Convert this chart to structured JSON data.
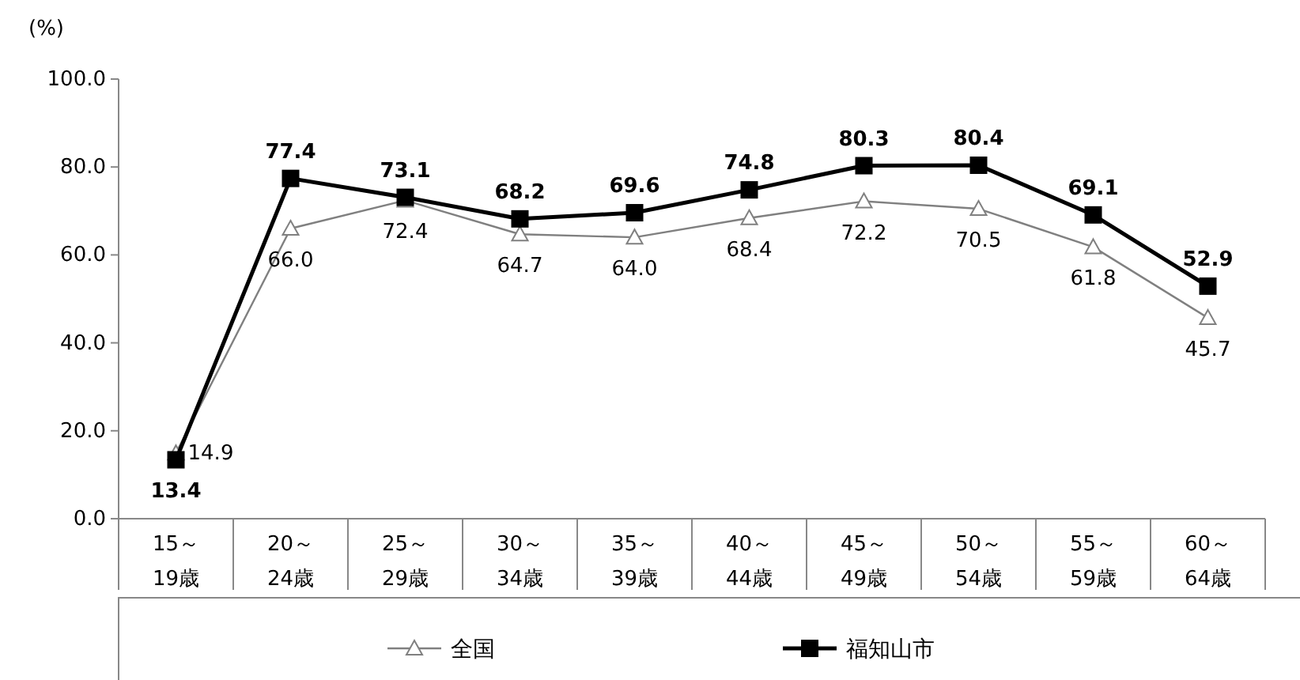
{
  "chart_data": {
    "type": "line",
    "ylabel": "(%)",
    "categories": [
      "15～19歳",
      "20～24歳",
      "25～29歳",
      "30～34歳",
      "35～39歳",
      "40～44歳",
      "45～49歳",
      "50～54歳",
      "55～59歳",
      "60～64歳"
    ],
    "series": [
      {
        "name": "全国",
        "color": "#808080",
        "marker": "triangle",
        "values": [
          14.9,
          66.0,
          72.4,
          64.7,
          64.0,
          68.4,
          72.2,
          70.5,
          61.8,
          45.7
        ],
        "value_labels": [
          "14.9",
          "66.0",
          "72.4",
          "64.7",
          "64.0",
          "68.4",
          "72.2",
          "70.5",
          "61.8",
          "45.7"
        ]
      },
      {
        "name": "福知山市",
        "color": "#000000",
        "marker": "square",
        "values": [
          13.4,
          77.4,
          73.1,
          68.2,
          69.6,
          74.8,
          80.3,
          80.4,
          69.1,
          52.9
        ],
        "value_labels": [
          "13.4",
          "77.4",
          "73.1",
          "68.2",
          "69.6",
          "74.8",
          "80.3",
          "80.4",
          "69.1",
          "52.9"
        ]
      }
    ],
    "ylim": [
      0,
      100
    ],
    "yticks": [
      {
        "value": 0,
        "label": "0.0"
      },
      {
        "value": 20,
        "label": "20.0"
      },
      {
        "value": 40,
        "label": "40.0"
      },
      {
        "value": 60,
        "label": "60.0"
      },
      {
        "value": 80,
        "label": "80.0"
      },
      {
        "value": 100,
        "label": "100.0"
      }
    ],
    "legend": "bottom",
    "grid": false
  }
}
